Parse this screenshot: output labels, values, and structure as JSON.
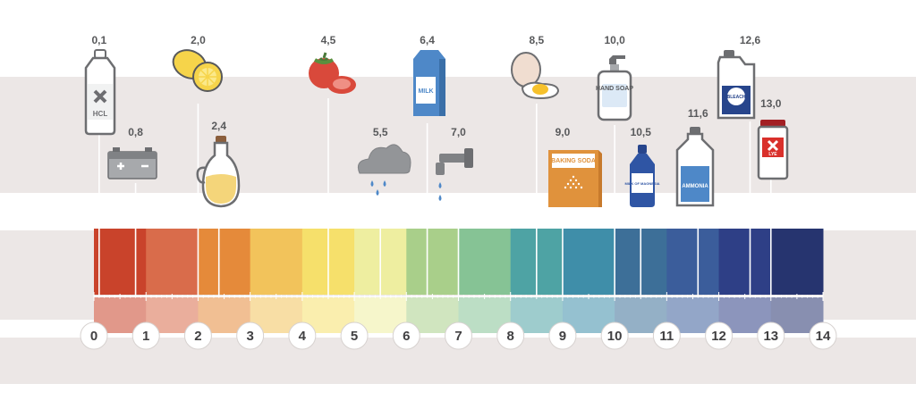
{
  "chart_data": {
    "type": "ph-scale",
    "scale_min": 0,
    "scale_max": 14,
    "ticks": [
      "0",
      "1",
      "2",
      "3",
      "4",
      "5",
      "6",
      "7",
      "8",
      "9",
      "10",
      "11",
      "12",
      "13",
      "14"
    ],
    "band_colors": [
      "#c9432b",
      "#d96c4b",
      "#e58a3a",
      "#f2c35b",
      "#f6e06b",
      "#eeeea0",
      "#a9cf8a",
      "#86c395",
      "#4ea3a4",
      "#3f8ea9",
      "#3d6f98",
      "#3b5d9b",
      "#2e3f86",
      "#26346f"
    ],
    "items": [
      {
        "name": "hcl",
        "value": 0.1,
        "label": "0,1",
        "icon_text": "HCL"
      },
      {
        "name": "battery",
        "value": 0.8,
        "label": "0,8",
        "icon_text": ""
      },
      {
        "name": "lemon",
        "value": 2.0,
        "label": "2,0",
        "icon_text": ""
      },
      {
        "name": "vinegar",
        "value": 2.4,
        "label": "2,4",
        "icon_text": ""
      },
      {
        "name": "tomato",
        "value": 4.5,
        "label": "4,5",
        "icon_text": ""
      },
      {
        "name": "rain",
        "value": 5.5,
        "label": "5,5",
        "icon_text": ""
      },
      {
        "name": "milk",
        "value": 6.4,
        "label": "6,4",
        "icon_text": "MILK"
      },
      {
        "name": "tap-water",
        "value": 7.0,
        "label": "7,0",
        "icon_text": ""
      },
      {
        "name": "egg",
        "value": 8.5,
        "label": "8,5",
        "icon_text": ""
      },
      {
        "name": "baking-soda",
        "value": 9.0,
        "label": "9,0",
        "icon_text": "BAKING SODA"
      },
      {
        "name": "hand-soap",
        "value": 10.0,
        "label": "10,0",
        "icon_text": "HAND SOAP"
      },
      {
        "name": "milk-of-magnesia",
        "value": 10.5,
        "label": "10,5",
        "icon_text": "MILK OF MAGNESIA"
      },
      {
        "name": "ammonia",
        "value": 11.6,
        "label": "11,6",
        "icon_text": "AMMONIA"
      },
      {
        "name": "bleach",
        "value": 12.6,
        "label": "12,6",
        "icon_text": "BLEACH"
      },
      {
        "name": "lye",
        "value": 13.0,
        "label": "13,0",
        "icon_text": "LYE"
      }
    ]
  }
}
